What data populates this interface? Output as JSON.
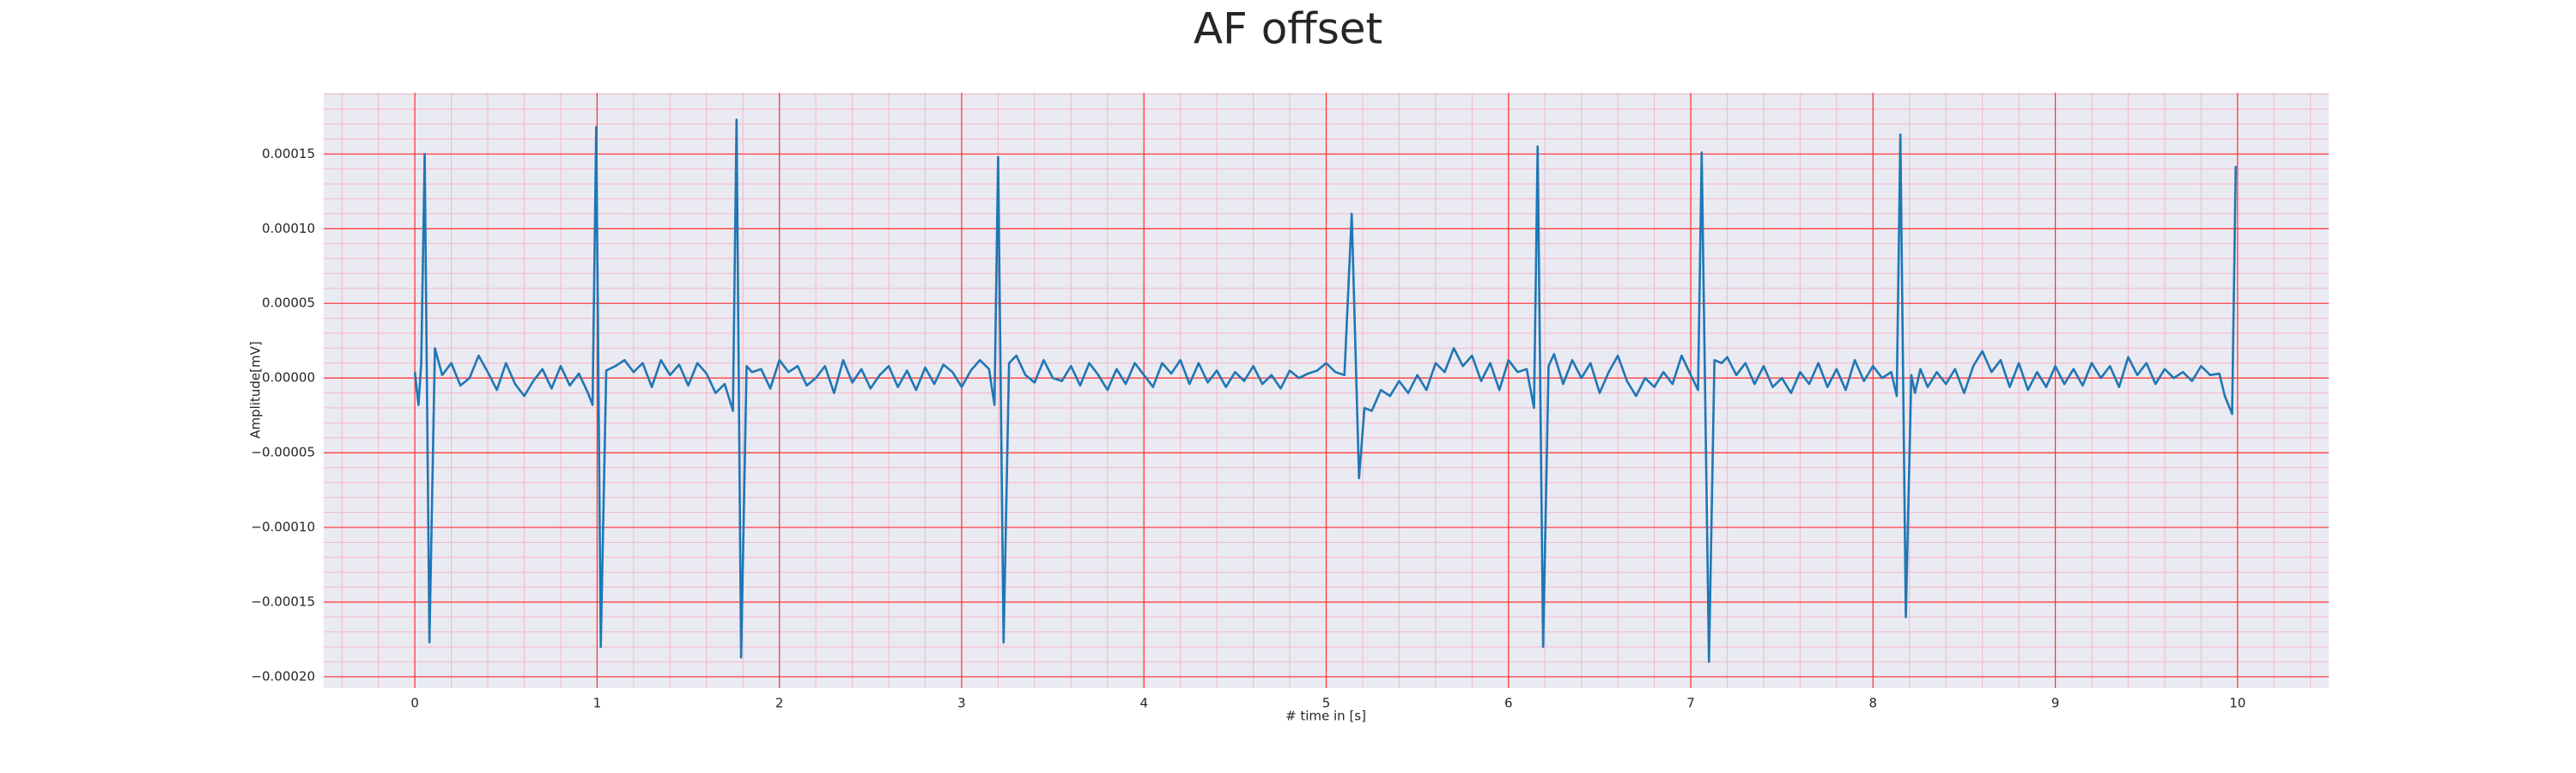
{
  "chart_data": {
    "type": "line",
    "title": "AF offset",
    "xlabel": "# time in [s]",
    "ylabel": "Amplitude[mV]",
    "color": "#1f77b4",
    "background": "#eaeaf2",
    "grid": true,
    "grid_color": "#ff3030",
    "minor_grid": {
      "x": 0.2,
      "y": 1e-05
    },
    "minor_grid_color": "#f4b8c8",
    "xlim": [
      -0.5,
      10.5
    ],
    "xticks": [
      0,
      1,
      2,
      3,
      4,
      5,
      6,
      7,
      8,
      9,
      10
    ],
    "ylim": [
      -0.0002075,
      0.000191
    ],
    "yticks": [
      {
        "value": -0.0002,
        "label": "−0.00020"
      },
      {
        "value": -0.00015,
        "label": "−0.00015"
      },
      {
        "value": -0.0001,
        "label": "−0.00010"
      },
      {
        "value": -5e-05,
        "label": "−0.00005"
      },
      {
        "value": 0,
        "label": "0.00000"
      },
      {
        "value": 5e-05,
        "label": "0.00005"
      },
      {
        "value": 0.0001,
        "label": "0.00010"
      },
      {
        "value": 0.00015,
        "label": "0.00015"
      }
    ],
    "x": [
      0,
      0.02,
      0.035,
      0.054,
      0.08,
      0.11,
      0.15,
      0.2,
      0.25,
      0.3,
      0.35,
      0.4,
      0.45,
      0.5,
      0.55,
      0.6,
      0.65,
      0.7,
      0.75,
      0.8,
      0.85,
      0.9,
      0.95,
      0.975,
      0.995,
      1.02,
      1.05,
      1.1,
      1.15,
      1.2,
      1.25,
      1.3,
      1.35,
      1.4,
      1.45,
      1.5,
      1.55,
      1.6,
      1.65,
      1.7,
      1.745,
      1.765,
      1.79,
      1.82,
      1.85,
      1.9,
      1.95,
      2.0,
      2.05,
      2.1,
      2.15,
      2.2,
      2.25,
      2.3,
      2.35,
      2.4,
      2.45,
      2.5,
      2.55,
      2.6,
      2.65,
      2.7,
      2.75,
      2.8,
      2.85,
      2.9,
      2.95,
      3.0,
      3.05,
      3.1,
      3.15,
      3.18,
      3.2,
      3.23,
      3.26,
      3.3,
      3.35,
      3.4,
      3.45,
      3.5,
      3.55,
      3.6,
      3.65,
      3.7,
      3.75,
      3.8,
      3.85,
      3.9,
      3.95,
      4.0,
      4.05,
      4.1,
      4.15,
      4.2,
      4.25,
      4.3,
      4.35,
      4.4,
      4.45,
      4.5,
      4.55,
      4.6,
      4.65,
      4.7,
      4.75,
      4.8,
      4.85,
      4.9,
      4.95,
      5.0,
      5.05,
      5.1,
      5.14,
      5.18,
      5.21,
      5.25,
      5.3,
      5.35,
      5.4,
      5.45,
      5.5,
      5.55,
      5.6,
      5.65,
      5.7,
      5.75,
      5.8,
      5.85,
      5.9,
      5.95,
      6.0,
      6.05,
      6.1,
      6.14,
      6.16,
      6.19,
      6.22,
      6.25,
      6.3,
      6.35,
      6.4,
      6.45,
      6.5,
      6.55,
      6.6,
      6.65,
      6.7,
      6.75,
      6.8,
      6.85,
      6.9,
      6.95,
      7.0,
      7.04,
      7.06,
      7.1,
      7.13,
      7.17,
      7.2,
      7.25,
      7.3,
      7.35,
      7.4,
      7.45,
      7.5,
      7.55,
      7.6,
      7.65,
      7.7,
      7.75,
      7.8,
      7.85,
      7.9,
      7.95,
      8.0,
      8.05,
      8.1,
      8.13,
      8.15,
      8.18,
      8.21,
      8.23,
      8.26,
      8.3,
      8.35,
      8.4,
      8.45,
      8.5,
      8.55,
      8.6,
      8.65,
      8.7,
      8.75,
      8.8,
      8.85,
      8.9,
      8.95,
      9.0,
      9.05,
      9.1,
      9.15,
      9.2,
      9.25,
      9.3,
      9.35,
      9.4,
      9.45,
      9.5,
      9.55,
      9.6,
      9.65,
      9.7,
      9.75,
      9.8,
      9.85,
      9.9,
      9.93,
      9.97,
      9.99
    ],
    "values": [
      4e-06,
      -1.8e-05,
      1e-05,
      0.00015,
      -0.000177,
      2e-05,
      2e-06,
      1e-05,
      -5e-06,
      0,
      1.5e-05,
      4e-06,
      -8e-06,
      1e-05,
      -4e-06,
      -1.2e-05,
      -2e-06,
      6e-06,
      -7e-06,
      8e-06,
      -5e-06,
      3e-06,
      -1e-05,
      -1.8e-05,
      0.000168,
      -0.00018,
      5e-06,
      8e-06,
      1.2e-05,
      4e-06,
      1e-05,
      -6e-06,
      1.2e-05,
      2e-06,
      9e-06,
      -5e-06,
      1e-05,
      3e-06,
      -1e-05,
      -4e-06,
      -2.2e-05,
      0.000173,
      -0.000187,
      8e-06,
      4e-06,
      6e-06,
      -7e-06,
      1.2e-05,
      4e-06,
      8e-06,
      -5e-06,
      0,
      8e-06,
      -1e-05,
      1.2e-05,
      -3e-06,
      6e-06,
      -7e-06,
      2e-06,
      8e-06,
      -6e-06,
      5e-06,
      -8e-06,
      7e-06,
      -4e-06,
      9e-06,
      4e-06,
      -6e-06,
      5e-06,
      1.2e-05,
      6e-06,
      -1.8e-05,
      0.000148,
      -0.000177,
      1e-05,
      1.5e-05,
      2e-06,
      -3e-06,
      1.2e-05,
      0,
      -2e-06,
      8e-06,
      -5e-06,
      1e-05,
      2e-06,
      -8e-06,
      6e-06,
      -4e-06,
      1e-05,
      2e-06,
      -6e-06,
      1e-05,
      3e-06,
      1.2e-05,
      -4e-06,
      1e-05,
      -3e-06,
      5e-06,
      -6e-06,
      4e-06,
      -2e-06,
      8e-06,
      -4e-06,
      2e-06,
      -7e-06,
      5e-06,
      0,
      3e-06,
      5e-06,
      1e-05,
      4e-06,
      2e-06,
      0.00011,
      -6.7e-05,
      -2e-05,
      -2.2e-05,
      -8e-06,
      -1.2e-05,
      -2e-06,
      -1e-05,
      2e-06,
      -8e-06,
      1e-05,
      4e-06,
      2e-05,
      8e-06,
      1.5e-05,
      -2e-06,
      1e-05,
      -8e-06,
      1.2e-05,
      4e-06,
      6e-06,
      -2e-05,
      0.000155,
      -0.00018,
      8e-06,
      1.6e-05,
      -4e-06,
      1.2e-05,
      0,
      1e-05,
      -1e-05,
      4e-06,
      1.5e-05,
      -2e-06,
      -1.2e-05,
      0,
      -6e-06,
      4e-06,
      -4e-06,
      1.5e-05,
      2e-06,
      -8e-06,
      0.000151,
      -0.00019,
      1.2e-05,
      1e-05,
      1.4e-05,
      2e-06,
      1e-05,
      -4e-06,
      8e-06,
      -6e-06,
      0,
      -1e-05,
      4e-06,
      -4e-06,
      1e-05,
      -6e-06,
      6e-06,
      -8e-06,
      1.2e-05,
      -2e-06,
      8e-06,
      0,
      4e-06,
      -1.2e-05,
      0.000163,
      -0.00016,
      2e-06,
      -1e-05,
      6e-06,
      -6e-06,
      4e-06,
      -4e-06,
      6e-06,
      -1e-05,
      8e-06,
      1.8e-05,
      4e-06,
      1.2e-05,
      -6e-06,
      1e-05,
      -8e-06,
      4e-06,
      -6e-06,
      8e-06,
      -4e-06,
      6e-06,
      -5e-06,
      1e-05,
      0,
      8e-06,
      -6e-06,
      1.4e-05,
      2e-06,
      1e-05,
      -4e-06,
      6e-06,
      0,
      4e-06,
      -2e-06,
      8e-06,
      2e-06,
      3e-06,
      -1.2e-05,
      -2.4e-05,
      0.000142
    ]
  }
}
